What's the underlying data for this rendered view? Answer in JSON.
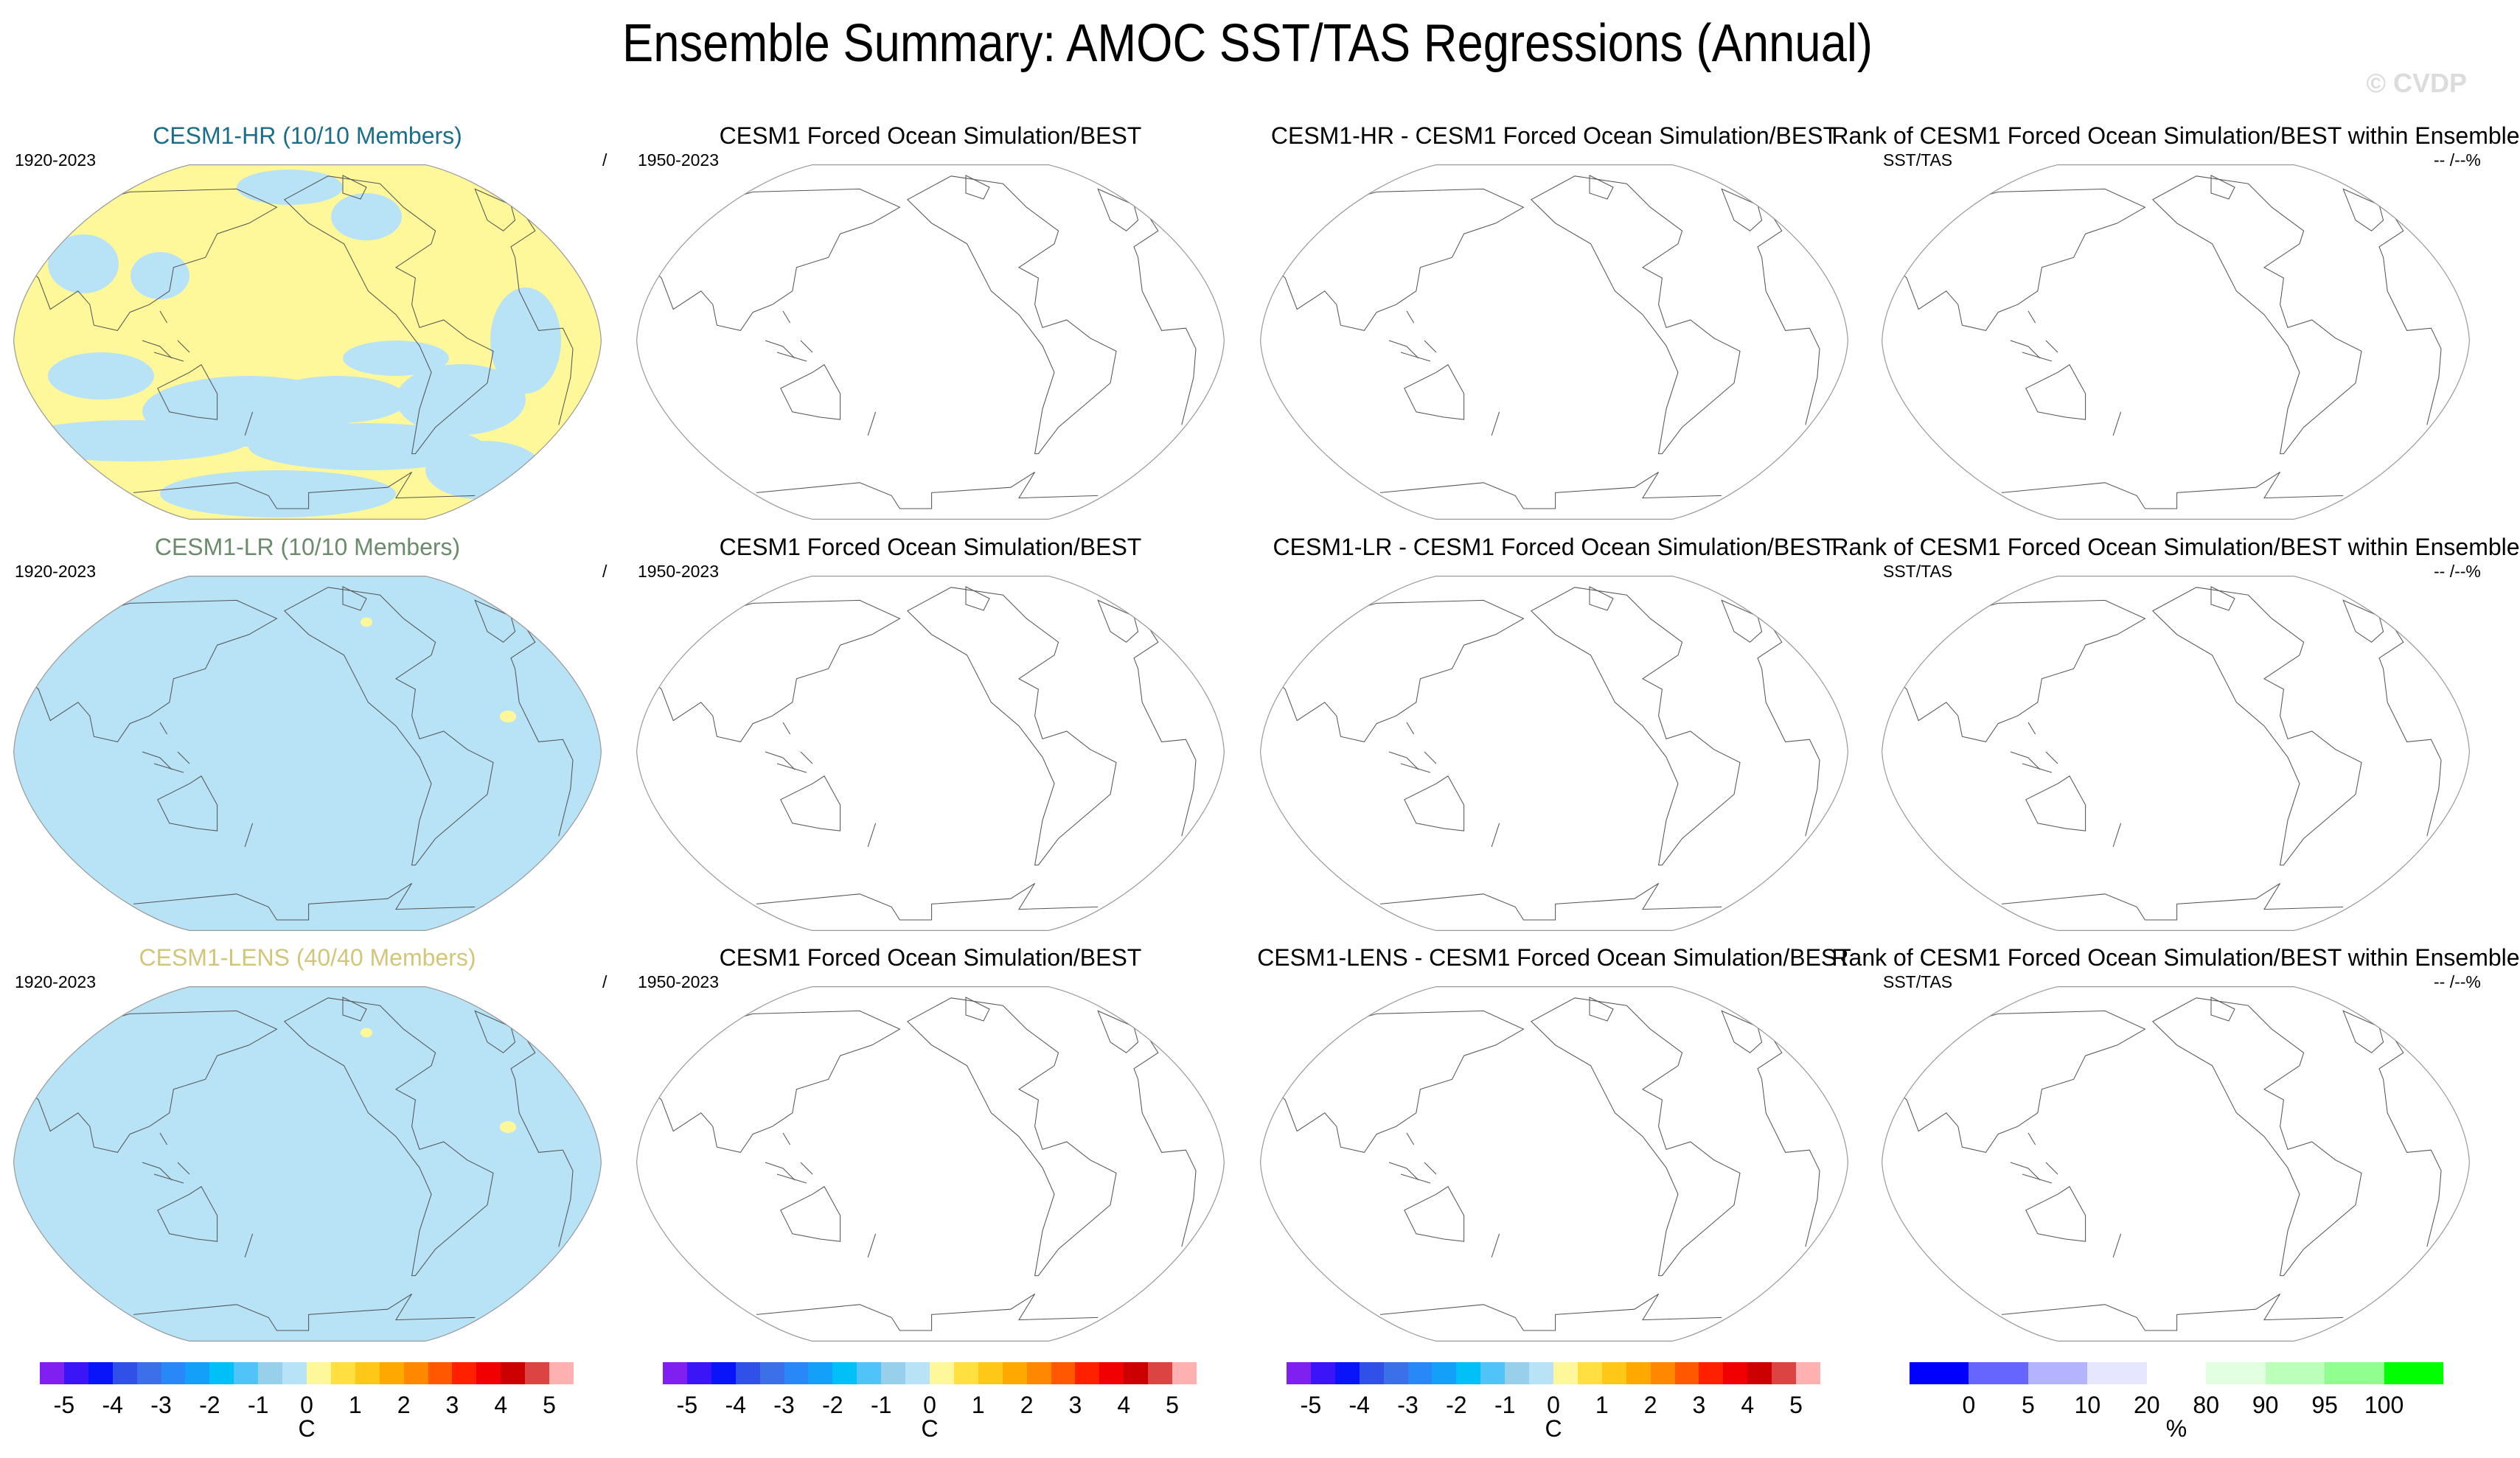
{
  "title": "Ensemble Summary: AMOC SST/TAS Regressions (Annual)",
  "watermark": "© CVDP",
  "colors": {
    "title_hr": "#1a6e8a",
    "title_lr": "#6b8c6b",
    "title_lens": "#d2c67a",
    "negative_fill": "#b8e2f6",
    "positive_fill": "#fff89a",
    "coastline": "#555555",
    "map_border": "#999999"
  },
  "rows": [
    {
      "panels": [
        {
          "title": "CESM1-HR (10/10 Members)",
          "title_color": "#1a6e8a",
          "left_sub": "1920-2023",
          "right_sub": "/",
          "fill": "mixed"
        },
        {
          "title": "CESM1 Forced Ocean Simulation/BEST",
          "left_sub": "1950-2023",
          "right_sub": "",
          "fill": "none"
        },
        {
          "title": "CESM1-HR - CESM1 Forced Ocean Simulation/BEST",
          "left_sub": "",
          "right_sub": "",
          "fill": "none"
        },
        {
          "title": "Rank of CESM1 Forced Ocean Simulation/BEST within Ensemble",
          "left_sub": "SST/TAS",
          "right_sub": "-- /--%",
          "fill": "none"
        }
      ]
    },
    {
      "panels": [
        {
          "title": "CESM1-LR (10/10 Members)",
          "title_color": "#6b8c6b",
          "left_sub": "1920-2023",
          "right_sub": "/",
          "fill": "negative"
        },
        {
          "title": "CESM1 Forced Ocean Simulation/BEST",
          "left_sub": "1950-2023",
          "right_sub": "",
          "fill": "none"
        },
        {
          "title": "CESM1-LR - CESM1 Forced Ocean Simulation/BEST",
          "left_sub": "",
          "right_sub": "",
          "fill": "none"
        },
        {
          "title": "Rank of CESM1 Forced Ocean Simulation/BEST within Ensemble",
          "left_sub": "SST/TAS",
          "right_sub": "-- /--%",
          "fill": "none"
        }
      ]
    },
    {
      "panels": [
        {
          "title": "CESM1-LENS (40/40 Members)",
          "title_color": "#d2c67a",
          "left_sub": "1920-2023",
          "right_sub": "/",
          "fill": "negative"
        },
        {
          "title": "CESM1 Forced Ocean Simulation/BEST",
          "left_sub": "1950-2023",
          "right_sub": "",
          "fill": "none"
        },
        {
          "title": "CESM1-LENS - CESM1 Forced Ocean Simulation/BEST",
          "left_sub": "",
          "right_sub": "",
          "fill": "none"
        },
        {
          "title": "Rank of CESM1 Forced Ocean Simulation/BEST within Ensemble",
          "left_sub": "SST/TAS",
          "right_sub": "-- /--%",
          "fill": "none"
        }
      ]
    }
  ],
  "chart_data": {
    "type": "heatmap",
    "projection": "Robinson (Pacific-centered)",
    "colorbars": [
      {
        "unit": "C",
        "labels": [
          "-5",
          "-4",
          "-3",
          "-2",
          "-1",
          "0",
          "1",
          "2",
          "3",
          "4",
          "5"
        ],
        "colors": [
          "#8020f0",
          "#3c14f8",
          "#0a14f8",
          "#3050e8",
          "#3c70e8",
          "#2888f8",
          "#14a0f8",
          "#00c0f8",
          "#50c4f8",
          "#98d0ec",
          "#b8e2f6",
          "#fff89a",
          "#ffe040",
          "#ffc818",
          "#ffa800",
          "#ff8800",
          "#ff5800",
          "#ff2000",
          "#f00000",
          "#cc0000",
          "#dc4444",
          "#ffb0b0"
        ]
      },
      {
        "unit": "C",
        "labels": [
          "-5",
          "-4",
          "-3",
          "-2",
          "-1",
          "0",
          "1",
          "2",
          "3",
          "4",
          "5"
        ],
        "colors": [
          "#8020f0",
          "#3c14f8",
          "#0a14f8",
          "#3050e8",
          "#3c70e8",
          "#2888f8",
          "#14a0f8",
          "#00c0f8",
          "#50c4f8",
          "#98d0ec",
          "#b8e2f6",
          "#fff89a",
          "#ffe040",
          "#ffc818",
          "#ffa800",
          "#ff8800",
          "#ff5800",
          "#ff2000",
          "#f00000",
          "#cc0000",
          "#dc4444",
          "#ffb0b0"
        ]
      },
      {
        "unit": "C",
        "labels": [
          "-5",
          "-4",
          "-3",
          "-2",
          "-1",
          "0",
          "1",
          "2",
          "3",
          "4",
          "5"
        ],
        "colors": [
          "#8020f0",
          "#3c14f8",
          "#0a14f8",
          "#3050e8",
          "#3c70e8",
          "#2888f8",
          "#14a0f8",
          "#00c0f8",
          "#50c4f8",
          "#98d0ec",
          "#b8e2f6",
          "#fff89a",
          "#ffe040",
          "#ffc818",
          "#ffa800",
          "#ff8800",
          "#ff5800",
          "#ff2000",
          "#f00000",
          "#cc0000",
          "#dc4444",
          "#ffb0b0"
        ]
      },
      {
        "unit": "%",
        "labels": [
          "0",
          "5",
          "10",
          "20",
          "80",
          "90",
          "95",
          "100"
        ],
        "colors": [
          "#0000ff",
          "#6666ff",
          "#b3b3ff",
          "#e6e6ff",
          "#ffffff",
          "#e2ffe2",
          "#bbffbb",
          "#90ff90",
          "#00ff00"
        ]
      }
    ]
  }
}
